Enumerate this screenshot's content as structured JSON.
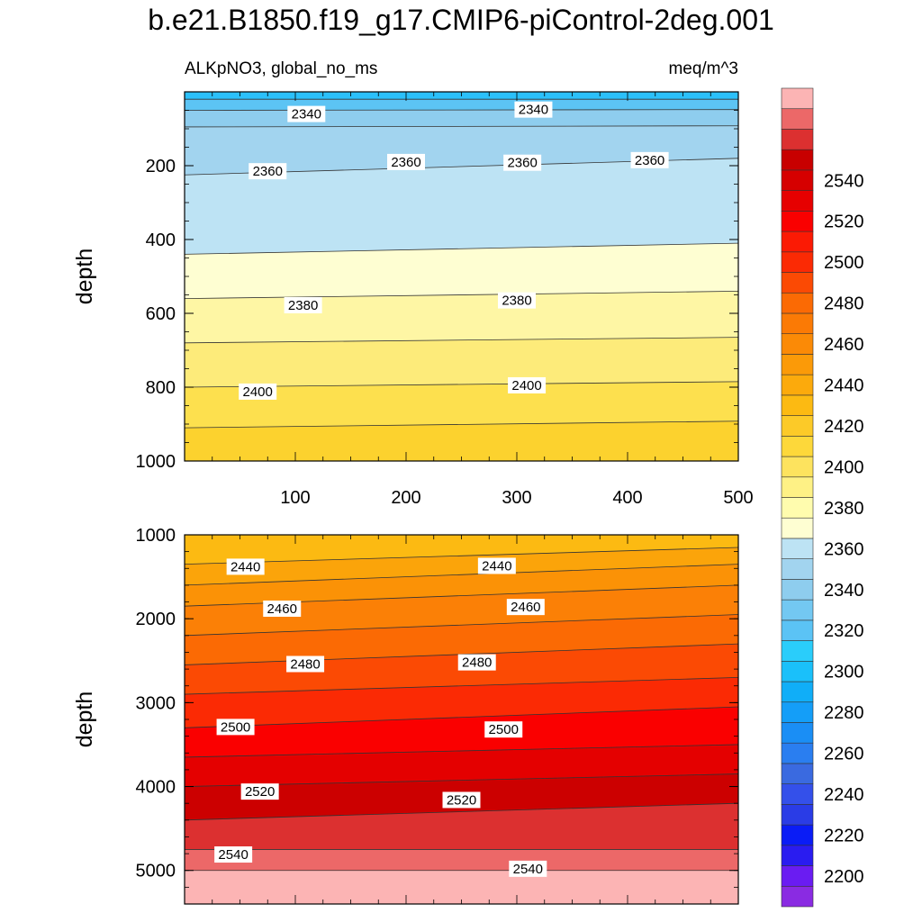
{
  "title": "b.e21.B1850.f19_g17.CMIP6-piControl-2deg.001",
  "chart_data": {
    "type": "contour",
    "variable_label": "ALKpNO3, global_no_ms",
    "units": "meq/m^3",
    "x": {
      "range": [
        0,
        500
      ],
      "ticks": [
        "100",
        "200",
        "300",
        "400",
        "500"
      ]
    },
    "colorbar": {
      "levels": [
        "2200",
        "2220",
        "2240",
        "2260",
        "2280",
        "2300",
        "2320",
        "2340",
        "2360",
        "2380",
        "2400",
        "2420",
        "2440",
        "2460",
        "2480",
        "2500",
        "2520",
        "2540"
      ],
      "colors": [
        "#8a2be2",
        "#6a1cf2",
        "#2a1cf0",
        "#0a1cf6",
        "#2a3ce6",
        "#3450ea",
        "#3a6ae0",
        "#2a7ef0",
        "#1a8ef5",
        "#149ef8",
        "#10aef8",
        "#1ac0fa",
        "#2acdfb",
        "#5bc3f5",
        "#73c8f2",
        "#8ecdee",
        "#a2d4ef",
        "#bde3f4",
        "#fefed2",
        "#fffcae",
        "#fef185",
        "#fde35e",
        "#fdd83a",
        "#fcca28",
        "#fcba12",
        "#fcaa0c",
        "#fb9a08",
        "#fb8a06",
        "#fb7a05",
        "#fb6a04",
        "#fb4a04",
        "#fb2a04",
        "#fb1a04",
        "#fa0000",
        "#e60000",
        "#d60000",
        "#c80000",
        "#dc3030",
        "#ec6868",
        "#fcb4b4"
      ]
    },
    "panels": [
      {
        "name": "upper",
        "ylabel": "depth",
        "y": {
          "range": [
            0,
            1000
          ],
          "ticks": [
            "200",
            "400",
            "600",
            "800",
            "1000"
          ]
        },
        "bands": [
          {
            "color": "#2bc0fa",
            "top": [
              0,
              0
            ],
            "bottom": [
              20,
              20
            ]
          },
          {
            "color": "#5cc4f4",
            "top": [
              20,
              20
            ],
            "bottom": [
              50,
              48
            ]
          },
          {
            "color": "#8ecdee",
            "top": [
              50,
              48
            ],
            "bottom": [
              95,
              92
            ]
          },
          {
            "color": "#a2d4ef",
            "top": [
              95,
              92
            ],
            "bottom": [
              225,
              180
            ]
          },
          {
            "color": "#bde3f4",
            "top": [
              225,
              180
            ],
            "bottom": [
              440,
              410
            ]
          },
          {
            "color": "#fefed2",
            "top": [
              440,
              410
            ],
            "bottom": [
              560,
              540
            ]
          },
          {
            "color": "#fef6a4",
            "top": [
              560,
              540
            ],
            "bottom": [
              680,
              665
            ]
          },
          {
            "color": "#fdeb7a",
            "top": [
              680,
              665
            ],
            "bottom": [
              800,
              785
            ]
          },
          {
            "color": "#fde04e",
            "top": [
              800,
              785
            ],
            "bottom": [
              910,
              892
            ]
          },
          {
            "color": "#fcd22e",
            "top": [
              910,
              892
            ],
            "bottom": [
              1000,
              1000
            ]
          }
        ],
        "contours": [
          {
            "level": "2340",
            "labels": [
              {
                "x": 110,
                "y": 60
              },
              {
                "x": 315,
                "y": 48
              }
            ]
          },
          {
            "level": "2360",
            "labels": [
              {
                "x": 75,
                "y": 215
              },
              {
                "x": 200,
                "y": 190
              },
              {
                "x": 305,
                "y": 192
              },
              {
                "x": 420,
                "y": 185
              }
            ]
          },
          {
            "level": "2380",
            "labels": [
              {
                "x": 107,
                "y": 578
              },
              {
                "x": 300,
                "y": 565
              }
            ]
          },
          {
            "level": "2400",
            "labels": [
              {
                "x": 66,
                "y": 812
              },
              {
                "x": 309,
                "y": 795
              }
            ]
          }
        ]
      },
      {
        "name": "lower",
        "ylabel": "depth",
        "y": {
          "range": [
            1000,
            5400
          ],
          "ticks": [
            "1000",
            "2000",
            "3000",
            "4000",
            "5000"
          ]
        },
        "bands": [
          {
            "color": "#fcba12",
            "top": [
              1000,
              1000
            ],
            "bottom": [
              1350,
              1150
            ]
          },
          {
            "color": "#fba40a",
            "top": [
              1350,
              1150
            ],
            "bottom": [
              1600,
              1350
            ]
          },
          {
            "color": "#fb9206",
            "top": [
              1600,
              1350
            ],
            "bottom": [
              1850,
              1600
            ]
          },
          {
            "color": "#fb8006",
            "top": [
              1850,
              1600
            ],
            "bottom": [
              2200,
              1950
            ]
          },
          {
            "color": "#fb6a04",
            "top": [
              2200,
              1950
            ],
            "bottom": [
              2550,
              2300
            ]
          },
          {
            "color": "#fb4a04",
            "top": [
              2550,
              2300
            ],
            "bottom": [
              2900,
              2700
            ]
          },
          {
            "color": "#fb2a04",
            "top": [
              2900,
              2700
            ],
            "bottom": [
              3300,
              3050
            ]
          },
          {
            "color": "#fa0000",
            "top": [
              3300,
              3050
            ],
            "bottom": [
              3650,
              3500
            ]
          },
          {
            "color": "#e40000",
            "top": [
              3650,
              3500
            ],
            "bottom": [
              4000,
              3850
            ]
          },
          {
            "color": "#cc0000",
            "top": [
              4000,
              3850
            ],
            "bottom": [
              4400,
              4200
            ]
          },
          {
            "color": "#dc3030",
            "top": [
              4400,
              4200
            ],
            "bottom": [
              4750,
              4750
            ]
          },
          {
            "color": "#ec6868",
            "top": [
              4750,
              4750
            ],
            "bottom": [
              5000,
              5000
            ]
          },
          {
            "color": "#fcb4b4",
            "top": [
              5000,
              5000
            ],
            "bottom": [
              5400,
              5400
            ]
          }
        ],
        "contours": [
          {
            "level": "2440",
            "labels": [
              {
                "x": 55,
                "y": 1380
              },
              {
                "x": 282,
                "y": 1370
              }
            ]
          },
          {
            "level": "2460",
            "labels": [
              {
                "x": 88,
                "y": 1880
              },
              {
                "x": 308,
                "y": 1860
              }
            ]
          },
          {
            "level": "2480",
            "labels": [
              {
                "x": 109,
                "y": 2540
              },
              {
                "x": 264,
                "y": 2520
              }
            ]
          },
          {
            "level": "2500",
            "labels": [
              {
                "x": 46,
                "y": 3290
              },
              {
                "x": 288,
                "y": 3320
              }
            ]
          },
          {
            "level": "2520",
            "labels": [
              {
                "x": 68,
                "y": 4060
              },
              {
                "x": 250,
                "y": 4160
              }
            ]
          },
          {
            "level": "2540",
            "labels": [
              {
                "x": 44,
                "y": 4810
              },
              {
                "x": 310,
                "y": 4980
              }
            ]
          }
        ]
      }
    ]
  }
}
